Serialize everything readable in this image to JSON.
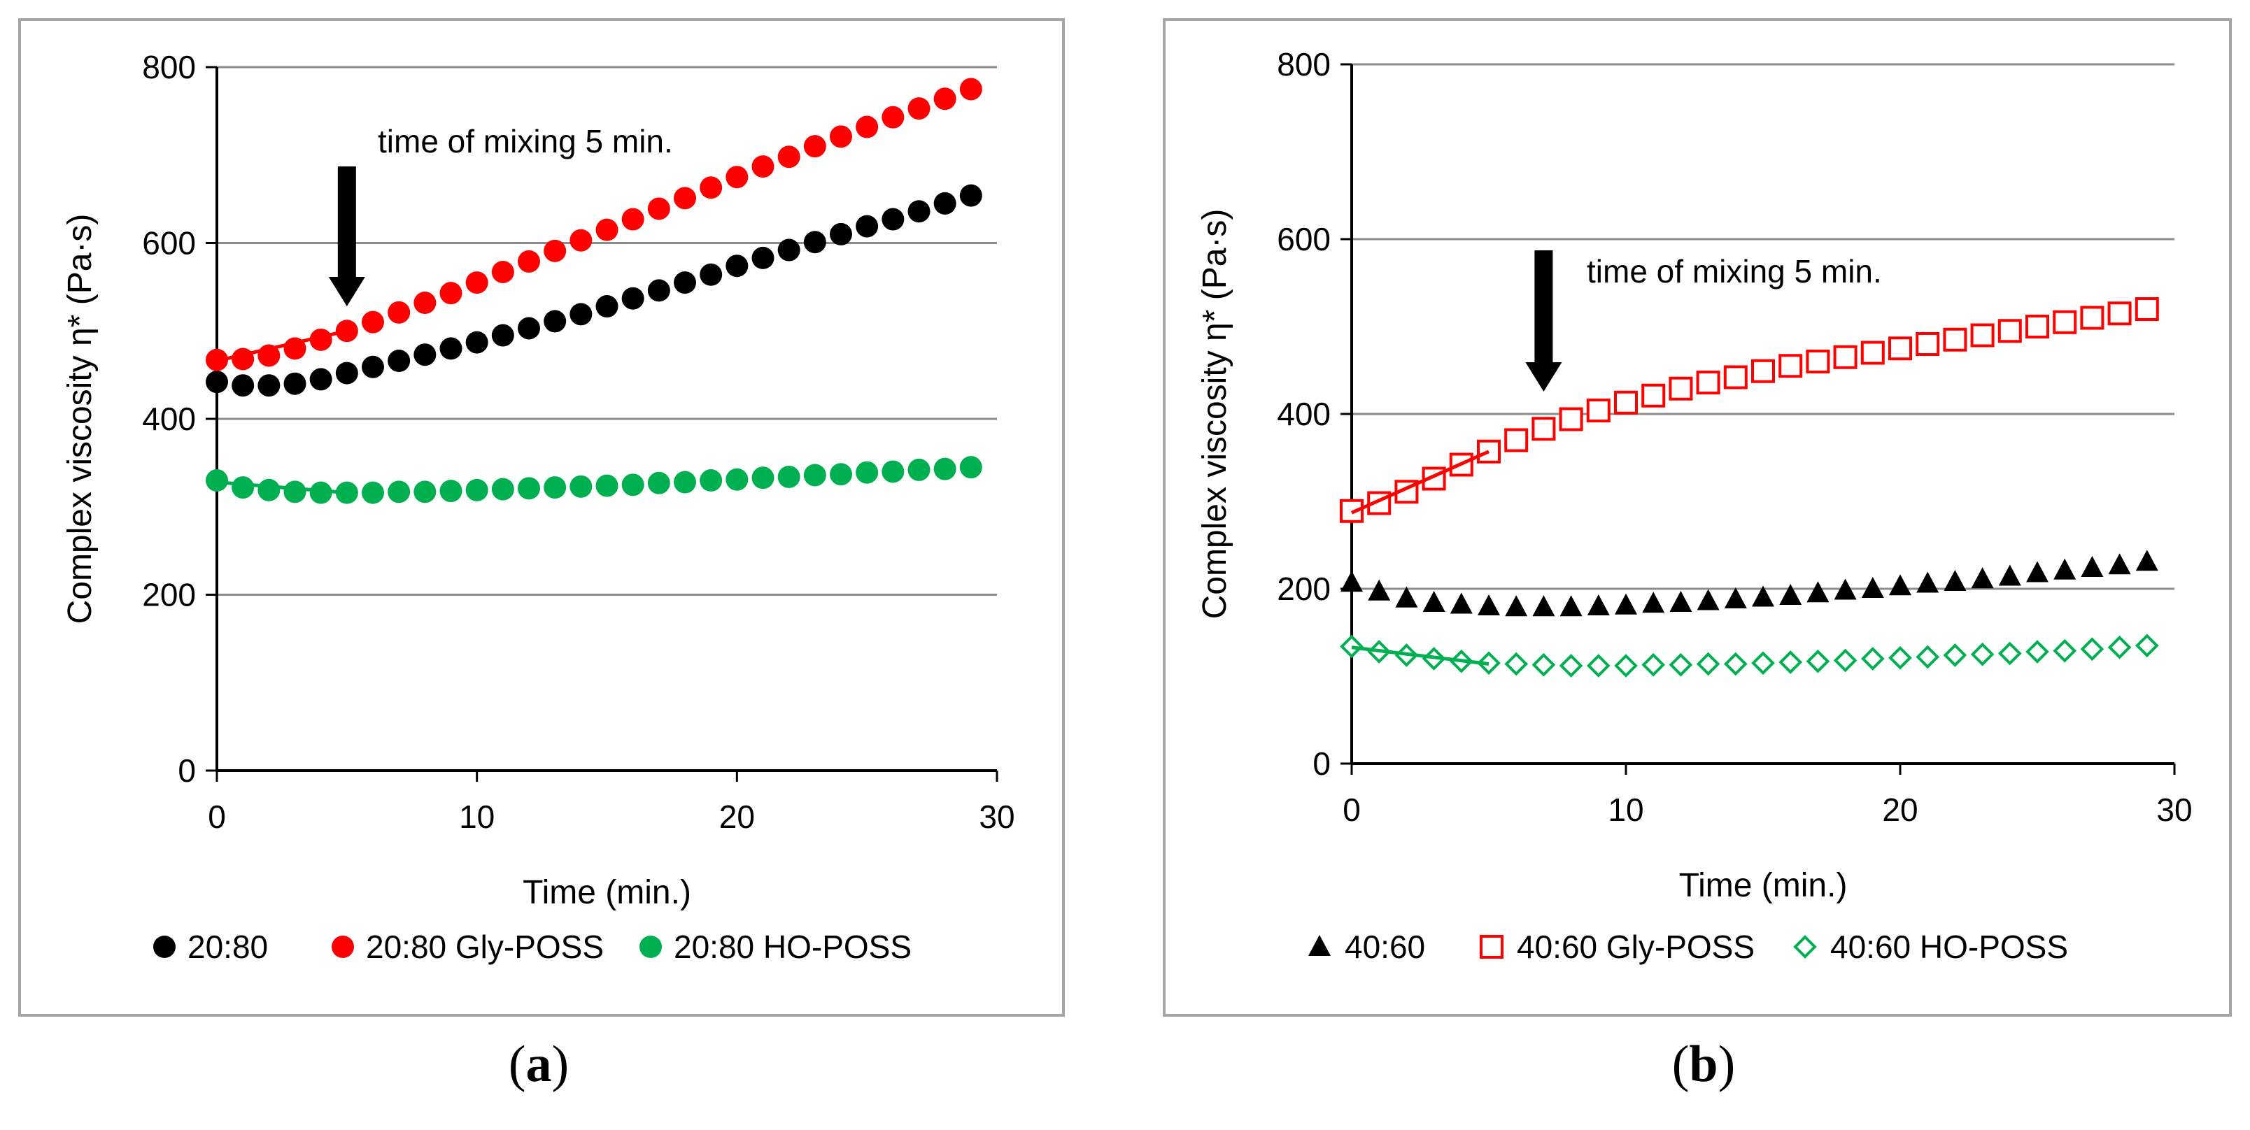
{
  "chart_data": [
    {
      "type": "scatter",
      "panel_label": "a",
      "title": "",
      "xlabel": "Time (min.)",
      "ylabel": "Complex viscosity η* (Pa·s)",
      "xlim": [
        0,
        30
      ],
      "ylim": [
        0,
        800
      ],
      "xticks": [
        0,
        10,
        20,
        30
      ],
      "yticks": [
        0,
        200,
        400,
        600,
        800
      ],
      "grid": "horizontal",
      "legend_position": "bottom",
      "annotation": "time of mixing 5 min.",
      "annotation_x": 5,
      "series": [
        {
          "name": "20:80",
          "marker": "circle-filled",
          "color": "#000000",
          "x": [
            0,
            1,
            2,
            3,
            4,
            5,
            6,
            7,
            8,
            9,
            10,
            11,
            12,
            13,
            14,
            15,
            16,
            17,
            18,
            19,
            20,
            21,
            22,
            23,
            24,
            25,
            26,
            27,
            28,
            29
          ],
          "values": [
            442,
            438,
            438,
            440,
            445,
            452,
            459,
            466,
            473,
            480,
            487,
            495,
            503,
            511,
            519,
            528,
            537,
            546,
            555,
            564,
            574,
            583,
            592,
            601,
            610,
            619,
            627,
            636,
            645,
            654
          ]
        },
        {
          "name": "20:80 Gly-POSS",
          "marker": "circle-filled",
          "color": "#ff0000",
          "x": [
            0,
            1,
            2,
            3,
            4,
            5,
            6,
            7,
            8,
            9,
            10,
            11,
            12,
            13,
            14,
            15,
            16,
            17,
            18,
            19,
            20,
            21,
            22,
            23,
            24,
            25,
            26,
            27,
            28,
            29
          ],
          "values": [
            467,
            468,
            472,
            480,
            490,
            500,
            510,
            521,
            532,
            543,
            555,
            567,
            579,
            591,
            603,
            615,
            627,
            639,
            651,
            663,
            675,
            687,
            698,
            710,
            721,
            732,
            743,
            753,
            764,
            775
          ],
          "fit": {
            "x": [
              0,
              5
            ],
            "values": [
              466,
              500
            ]
          }
        },
        {
          "name": "20:80 HO-POSS",
          "marker": "circle-filled",
          "color": "#00b050",
          "x": [
            0,
            1,
            2,
            3,
            4,
            5,
            6,
            7,
            8,
            9,
            10,
            11,
            12,
            13,
            14,
            15,
            16,
            17,
            18,
            19,
            20,
            21,
            22,
            23,
            24,
            25,
            26,
            27,
            28,
            29
          ],
          "values": [
            330,
            322,
            319,
            317,
            316,
            316,
            316,
            317,
            317,
            318,
            319,
            320,
            321,
            322,
            323,
            324,
            325,
            327,
            328,
            330,
            331,
            333,
            334,
            336,
            337,
            339,
            340,
            342,
            343,
            345
          ],
          "fit": {
            "x": [
              0,
              5
            ],
            "values": [
              328,
              316
            ]
          }
        }
      ]
    },
    {
      "type": "scatter",
      "panel_label": "b",
      "title": "",
      "xlabel": "Time (min.)",
      "ylabel": "Complex viscosity η* (Pa·s)",
      "xlim": [
        0,
        30
      ],
      "ylim": [
        0,
        800
      ],
      "xticks": [
        0,
        10,
        20,
        30
      ],
      "yticks": [
        0,
        200,
        400,
        600,
        800
      ],
      "grid": "horizontal",
      "legend_position": "bottom",
      "annotation": "time of mixing 5 min.",
      "annotation_x": 7,
      "series": [
        {
          "name": "40:60",
          "marker": "triangle-filled",
          "color": "#000000",
          "x": [
            0,
            1,
            2,
            3,
            4,
            5,
            6,
            7,
            8,
            9,
            10,
            11,
            12,
            13,
            14,
            15,
            16,
            17,
            18,
            19,
            20,
            21,
            22,
            23,
            24,
            25,
            26,
            27,
            28,
            29
          ],
          "values": [
            207,
            197,
            189,
            184,
            182,
            180,
            179,
            179,
            179,
            180,
            181,
            183,
            184,
            186,
            188,
            190,
            192,
            195,
            198,
            200,
            203,
            206,
            208,
            211,
            214,
            218,
            221,
            224,
            227,
            231
          ]
        },
        {
          "name": "40:60 Gly-POSS",
          "marker": "square-open",
          "color": "#ff0000",
          "x": [
            0,
            1,
            2,
            3,
            4,
            5,
            6,
            7,
            8,
            9,
            10,
            11,
            12,
            13,
            14,
            15,
            16,
            17,
            18,
            19,
            20,
            21,
            22,
            23,
            24,
            25,
            26,
            27,
            28,
            29
          ],
          "values": [
            289,
            298,
            311,
            326,
            342,
            357,
            370,
            383,
            394,
            404,
            413,
            421,
            429,
            436,
            442,
            449,
            455,
            460,
            465,
            470,
            475,
            480,
            485,
            490,
            495,
            500,
            505,
            510,
            515,
            520
          ],
          "fit": {
            "x": [
              0,
              5
            ],
            "values": [
              287,
              357
            ]
          }
        },
        {
          "name": "40:60 HO-POSS",
          "marker": "diamond-open",
          "color": "#00b050",
          "x": [
            0,
            1,
            2,
            3,
            4,
            5,
            6,
            7,
            8,
            9,
            10,
            11,
            12,
            13,
            14,
            15,
            16,
            17,
            18,
            19,
            20,
            21,
            22,
            23,
            24,
            25,
            26,
            27,
            28,
            29
          ],
          "values": [
            134,
            128,
            124,
            120,
            117,
            115,
            114,
            113,
            112,
            112,
            112,
            113,
            113,
            114,
            114,
            115,
            116,
            117,
            118,
            120,
            121,
            122,
            124,
            125,
            126,
            128,
            129,
            131,
            133,
            135
          ],
          "fit": {
            "x": [
              0,
              5
            ],
            "values": [
              133,
              114
            ]
          }
        }
      ]
    }
  ],
  "captions": {
    "a": {
      "open": "(",
      "label": "a",
      "close": ")"
    },
    "b": {
      "open": "(",
      "label": "b",
      "close": ")"
    }
  }
}
